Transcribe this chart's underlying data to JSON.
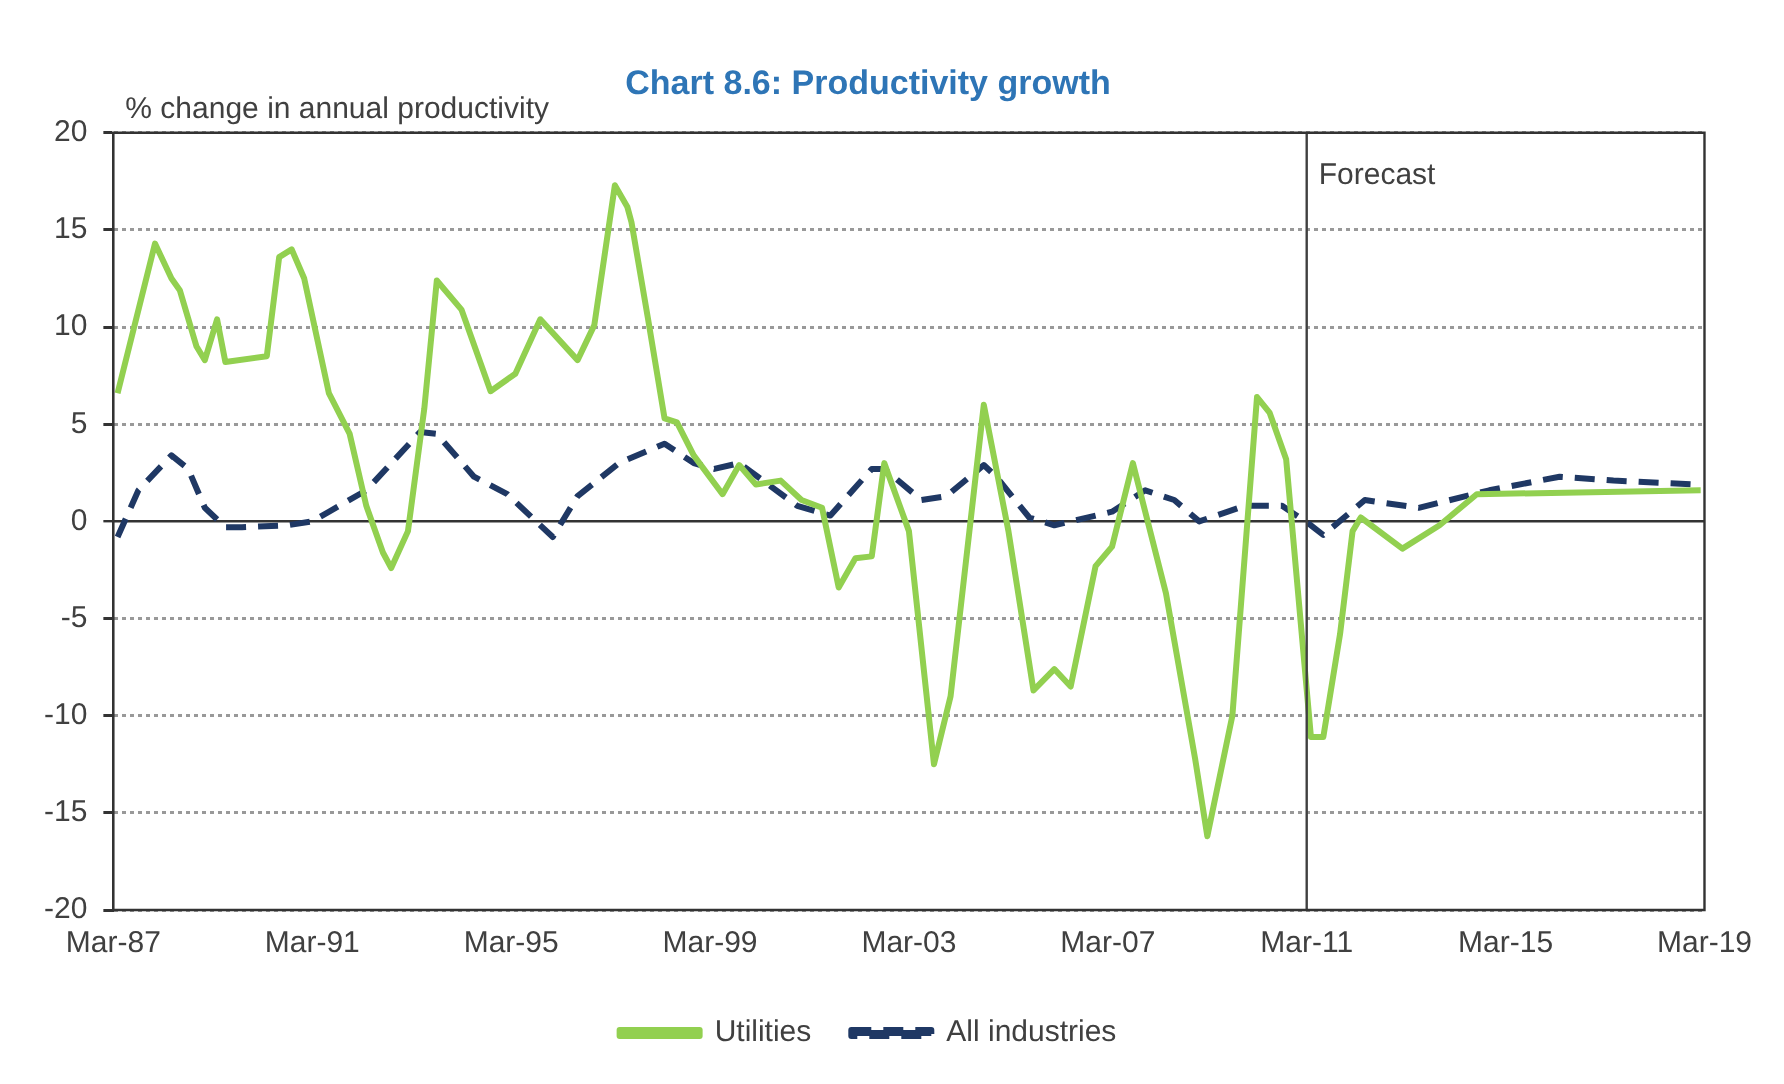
{
  "chart_data": {
    "type": "line",
    "title": "Chart 8.6: Productivity growth",
    "ylabel": "% change in annual productivity",
    "xlim": [
      "1987-03",
      "2019-03"
    ],
    "xticks": [
      {
        "value": "1987-03",
        "label": "Mar-87"
      },
      {
        "value": "1991-03",
        "label": "Mar-91"
      },
      {
        "value": "1995-03",
        "label": "Mar-95"
      },
      {
        "value": "1999-03",
        "label": "Mar-99"
      },
      {
        "value": "2003-03",
        "label": "Mar-03"
      },
      {
        "value": "2007-03",
        "label": "Mar-07"
      },
      {
        "value": "2011-03",
        "label": "Mar-11"
      },
      {
        "value": "2015-03",
        "label": "Mar-15"
      },
      {
        "value": "2019-03",
        "label": "Mar-19"
      }
    ],
    "ylim": [
      -20,
      20
    ],
    "yticks": [
      -20,
      -15,
      -10,
      -5,
      0,
      5,
      10,
      15,
      20
    ],
    "grid": "y",
    "legend": "bottom",
    "marker": "none",
    "ref_lines": [
      {
        "axis": "x",
        "value": "2011-03",
        "label": "Forecast",
        "color": "#404040"
      }
    ],
    "series": [
      {
        "name": "Utilities",
        "color": "#92d050",
        "line_style": "solid",
        "x": [
          "1987-04",
          "1988-01",
          "1988-05",
          "1988-07",
          "1988-11",
          "1989-01",
          "1989-04",
          "1989-06",
          "1990-04",
          "1990-07",
          "1990-10",
          "1991-01",
          "1991-07",
          "1991-12",
          "1992-04",
          "1992-08",
          "1992-10",
          "1993-02",
          "1993-06",
          "1993-09",
          "1994-03",
          "1994-10",
          "1995-04",
          "1995-10",
          "1996-07",
          "1996-11",
          "1997-04",
          "1997-07",
          "1997-08",
          "1997-12",
          "1998-04",
          "1998-07",
          "1998-11",
          "1999-06",
          "1999-10",
          "2000-02",
          "2000-08",
          "2001-01",
          "2001-06",
          "2001-10",
          "2002-02",
          "2002-06",
          "2002-09",
          "2003-03",
          "2003-09",
          "2004-01",
          "2004-09",
          "2005-03",
          "2005-09",
          "2006-02",
          "2006-06",
          "2006-12",
          "2007-04",
          "2007-09",
          "2008-05",
          "2008-12",
          "2009-03",
          "2009-09",
          "2010-03",
          "2010-06",
          "2010-10",
          "2011-04",
          "2011-07",
          "2011-11",
          "2012-02",
          "2012-04",
          "2013-02",
          "2013-11",
          "2014-08",
          "2019-02"
        ],
        "values": [
          6.6,
          14.3,
          12.5,
          11.9,
          9.0,
          8.3,
          10.4,
          8.2,
          8.5,
          13.6,
          14.0,
          12.5,
          6.6,
          4.5,
          0.8,
          -1.6,
          -2.4,
          -0.5,
          5.8,
          12.4,
          10.9,
          6.7,
          7.6,
          10.4,
          8.3,
          10.1,
          17.3,
          16.2,
          15.4,
          10.4,
          5.3,
          5.1,
          3.4,
          1.4,
          2.9,
          1.9,
          2.1,
          1.1,
          0.7,
          -3.4,
          -1.9,
          -1.8,
          3.0,
          -0.5,
          -12.5,
          -9.0,
          6.0,
          -0.5,
          -8.7,
          -7.6,
          -8.5,
          -2.3,
          -1.3,
          3.0,
          -3.7,
          -12.2,
          -16.2,
          -10.0,
          6.4,
          5.6,
          3.2,
          -11.1,
          -11.1,
          -5.8,
          -0.5,
          0.2,
          -1.4,
          -0.2,
          1.4,
          1.6
        ]
      },
      {
        "name": "All industries",
        "color": "#1f3864",
        "line_style": "dashed",
        "x": [
          "1987-04",
          "1987-09",
          "1988-05",
          "1988-09",
          "1989-01",
          "1989-06",
          "1989-10",
          "1990-09",
          "1991-03",
          "1992-04",
          "1993-05",
          "1993-09",
          "1994-06",
          "1995-02",
          "1995-08",
          "1996-01",
          "1996-07",
          "1997-05",
          "1998-04",
          "1998-11",
          "1999-04",
          "1999-10",
          "2000-12",
          "2001-08",
          "2002-06",
          "2002-09",
          "2003-06",
          "2003-12",
          "2004-09",
          "2004-12",
          "2005-08",
          "2006-02",
          "2007-04",
          "2007-12",
          "2008-07",
          "2009-01",
          "2009-12",
          "2010-09",
          "2011-04",
          "2011-07",
          "2012-05",
          "2013-06",
          "2014-11",
          "2016-04",
          "2017-05",
          "2019-01"
        ],
        "values": [
          -0.8,
          1.6,
          3.4,
          2.7,
          0.7,
          -0.3,
          -0.3,
          -0.2,
          0.0,
          1.6,
          4.6,
          4.5,
          2.3,
          1.4,
          0.2,
          -0.8,
          1.3,
          3.0,
          4.0,
          3.0,
          2.7,
          3.0,
          0.8,
          0.3,
          2.7,
          2.7,
          1.1,
          1.3,
          2.9,
          2.3,
          0.2,
          -0.2,
          0.5,
          1.6,
          1.1,
          0.0,
          0.8,
          0.8,
          -0.2,
          -0.7,
          1.1,
          0.7,
          1.6,
          2.3,
          2.1,
          1.9
        ]
      }
    ]
  }
}
